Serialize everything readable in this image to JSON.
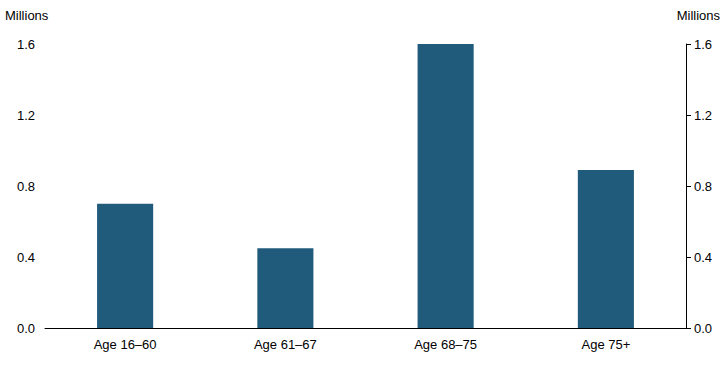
{
  "chart_data": {
    "type": "bar",
    "ylabel": "Millions",
    "y2label": "Millions",
    "categories": [
      "Age 16–60",
      "Age 61–67",
      "Age 68–75",
      "Age 75+"
    ],
    "values": [
      0.7,
      0.45,
      1.6,
      0.89
    ],
    "color": "#215b7b",
    "ylim": [
      0,
      1.6
    ],
    "yticks": [
      {
        "value": 0,
        "label": "0.0"
      },
      {
        "value": 0.4,
        "label": "0.4"
      },
      {
        "value": 0.8,
        "label": "0.8"
      },
      {
        "value": 1.2,
        "label": "1.2"
      },
      {
        "value": 1.6,
        "label": "1.6"
      }
    ],
    "y2lim": [
      0,
      1.6
    ],
    "y2ticks": [
      {
        "value": 0,
        "label": "0.0"
      },
      {
        "value": 0.4,
        "label": "0.4"
      },
      {
        "value": 0.8,
        "label": "0.8"
      },
      {
        "value": 1.2,
        "label": "1.2"
      },
      {
        "value": 1.6,
        "label": "1.6"
      }
    ],
    "grid": false
  }
}
